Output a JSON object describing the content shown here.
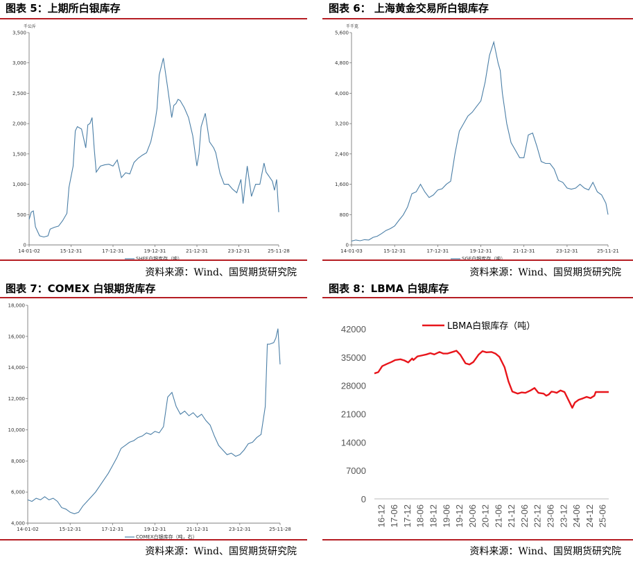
{
  "panels": {
    "p5": {
      "title": "图表 5：上期所白银库存",
      "source": "资料来源：Wind、国贸期货研究院"
    },
    "p6": {
      "title": "图表 6：  上海黄金交易所白银库存",
      "source": "资料来源：Wind、国贸期货研究院"
    },
    "p7": {
      "title": "图表 7：COMEX 白银期货库存",
      "source": "资料来源：Wind、国贸期货研究院"
    },
    "p8": {
      "title": "图表 8：LBMA 白银库存",
      "source": "资料来源：Wind、国贸期货研究院"
    }
  },
  "colors": {
    "rule": "#b51c22",
    "series_blue": "#4a7ea6",
    "series_red": "#e8151b"
  },
  "chart_data": [
    {
      "id": "c5",
      "type": "line",
      "unit": "千公斤",
      "ylim": [
        0,
        3500
      ],
      "yticks": [
        "0",
        "500",
        "1,000",
        "1,500",
        "2,000",
        "2,500",
        "3,000",
        "3,500"
      ],
      "xlim": [
        0,
        11.9
      ],
      "xticks": [
        "14-01-02",
        "15-12-31",
        "17-12-31",
        "19-12-31",
        "21-12-31",
        "23-12-31",
        "25-11-28"
      ],
      "xtick_pos": [
        0,
        2,
        4,
        6,
        8,
        10,
        11.9
      ],
      "series": [
        {
          "name": "SHFE白银库存（吨）",
          "x": [
            0,
            0.1,
            0.2,
            0.3,
            0.5,
            0.7,
            0.9,
            1.0,
            1.2,
            1.4,
            1.6,
            1.8,
            1.9,
            2.1,
            2.2,
            2.3,
            2.5,
            2.7,
            2.8,
            2.9,
            3.0,
            3.1,
            3.2,
            3.4,
            3.6,
            3.8,
            4.0,
            4.2,
            4.4,
            4.6,
            4.8,
            5.0,
            5.2,
            5.4,
            5.6,
            5.8,
            6.0,
            6.1,
            6.2,
            6.4,
            6.6,
            6.8,
            6.9,
            7.0,
            7.1,
            7.2,
            7.4,
            7.6,
            7.8,
            8.0,
            8.1,
            8.2,
            8.4,
            8.6,
            8.8,
            8.9,
            9.1,
            9.3,
            9.5,
            9.7,
            9.9,
            10.1,
            10.2,
            10.4,
            10.6,
            10.8,
            11.0,
            11.2,
            11.3,
            11.4,
            11.6,
            11.7,
            11.8,
            11.9
          ],
          "values": [
            420,
            540,
            560,
            300,
            150,
            130,
            150,
            260,
            290,
            310,
            400,
            520,
            950,
            1300,
            1880,
            1950,
            1910,
            1600,
            1980,
            2000,
            2100,
            1600,
            1200,
            1300,
            1320,
            1330,
            1300,
            1400,
            1110,
            1190,
            1170,
            1360,
            1430,
            1480,
            1520,
            1700,
            2020,
            2250,
            2800,
            3080,
            2600,
            2100,
            2300,
            2330,
            2400,
            2380,
            2260,
            2100,
            1800,
            1300,
            1500,
            1950,
            2170,
            1700,
            1600,
            1520,
            1180,
            1000,
            1000,
            920,
            860,
            1080,
            680,
            1300,
            800,
            1000,
            1000,
            1350,
            1200,
            1150,
            1050,
            900,
            1080,
            540
          ]
        }
      ]
    },
    {
      "id": "c6",
      "type": "line",
      "unit": "千千克",
      "ylim": [
        0,
        5600
      ],
      "yticks": [
        "0",
        "800",
        "1,600",
        "2,400",
        "3,200",
        "4,000",
        "4,800",
        "5,600"
      ],
      "xlim": [
        0,
        11.9
      ],
      "xticks": [
        "14-01-03",
        "15-12-31",
        "17-12-31",
        "19-12-31",
        "21-12-31",
        "23-12-31",
        "25-11-21"
      ],
      "xtick_pos": [
        0,
        2,
        4,
        6,
        8,
        10,
        11.9
      ],
      "series": [
        {
          "name": "SGE白银库存（吨）",
          "x": [
            0,
            0.2,
            0.4,
            0.6,
            0.8,
            1.0,
            1.2,
            1.4,
            1.6,
            1.8,
            2.0,
            2.2,
            2.4,
            2.6,
            2.8,
            3.0,
            3.2,
            3.4,
            3.6,
            3.8,
            4.0,
            4.2,
            4.4,
            4.6,
            4.8,
            5.0,
            5.2,
            5.4,
            5.6,
            5.8,
            6.0,
            6.2,
            6.4,
            6.6,
            6.8,
            6.9,
            7.0,
            7.2,
            7.4,
            7.6,
            7.8,
            8.0,
            8.2,
            8.4,
            8.6,
            8.8,
            9.0,
            9.2,
            9.4,
            9.6,
            9.8,
            10.0,
            10.2,
            10.4,
            10.6,
            10.8,
            11.0,
            11.2,
            11.4,
            11.6,
            11.8,
            11.9
          ],
          "values": [
            100,
            130,
            110,
            140,
            130,
            200,
            230,
            300,
            380,
            430,
            500,
            650,
            790,
            1000,
            1350,
            1400,
            1600,
            1400,
            1250,
            1320,
            1450,
            1480,
            1600,
            1680,
            2400,
            3000,
            3200,
            3400,
            3500,
            3650,
            3800,
            4300,
            5000,
            5350,
            4800,
            4600,
            4000,
            3200,
            2700,
            2500,
            2300,
            2300,
            2900,
            2950,
            2600,
            2200,
            2150,
            2150,
            2000,
            1700,
            1650,
            1500,
            1470,
            1500,
            1600,
            1500,
            1450,
            1650,
            1400,
            1320,
            1100,
            800
          ]
        }
      ]
    },
    {
      "id": "c7",
      "type": "line",
      "unit": "",
      "ylim": [
        4000,
        18000
      ],
      "yticks": [
        "4,000",
        "6,000",
        "8,000",
        "10,000",
        "12,000",
        "14,000",
        "16,000",
        "18,000"
      ],
      "xlim": [
        0,
        11.9
      ],
      "xticks": [
        "14-01-02",
        "15-12-31",
        "17-12-31",
        "19-12-31",
        "21-12-31",
        "23-12-31",
        "25-11-28"
      ],
      "xtick_pos": [
        0,
        2,
        4,
        6,
        8,
        10,
        11.9
      ],
      "series": [
        {
          "name": "COMEX白银库存（吨，右）",
          "x": [
            0,
            0.2,
            0.4,
            0.6,
            0.8,
            1.0,
            1.2,
            1.4,
            1.6,
            1.8,
            2.0,
            2.2,
            2.4,
            2.6,
            2.8,
            3.0,
            3.2,
            3.4,
            3.6,
            3.8,
            4.0,
            4.2,
            4.4,
            4.6,
            4.8,
            5.0,
            5.2,
            5.4,
            5.6,
            5.8,
            6.0,
            6.2,
            6.4,
            6.6,
            6.8,
            7.0,
            7.2,
            7.4,
            7.6,
            7.8,
            8.0,
            8.2,
            8.4,
            8.6,
            8.8,
            9.0,
            9.2,
            9.4,
            9.6,
            9.8,
            10.0,
            10.2,
            10.4,
            10.6,
            10.8,
            11.0,
            11.2,
            11.3,
            11.4,
            11.6,
            11.7,
            11.8,
            11.9
          ],
          "values": [
            5500,
            5400,
            5600,
            5500,
            5700,
            5500,
            5600,
            5400,
            5000,
            4900,
            4700,
            4600,
            4700,
            5100,
            5400,
            5700,
            6000,
            6400,
            6800,
            7200,
            7700,
            8200,
            8800,
            9000,
            9200,
            9300,
            9500,
            9600,
            9800,
            9700,
            9900,
            9800,
            10200,
            12100,
            12400,
            11500,
            11000,
            11200,
            10900,
            11100,
            10800,
            11000,
            10600,
            10300,
            9600,
            9000,
            8700,
            8400,
            8500,
            8300,
            8400,
            8700,
            9100,
            9200,
            9500,
            9700,
            11500,
            15500,
            15500,
            15600,
            15900,
            16500,
            14200
          ]
        }
      ]
    },
    {
      "id": "c8",
      "type": "line",
      "unit": "",
      "ylim": [
        0,
        42000
      ],
      "yticks": [
        "0",
        "7000",
        "14000",
        "21000",
        "28000",
        "35000",
        "42000"
      ],
      "xticks": [
        "16-12",
        "17-06",
        "17-12",
        "18-06",
        "18-12",
        "19-06",
        "19-12",
        "20-06",
        "20-12",
        "21-06",
        "21-12",
        "22-06",
        "22-12",
        "23-06",
        "23-12",
        "24-06",
        "24-12",
        "25-06"
      ],
      "xlim": [
        0,
        18
      ],
      "series": [
        {
          "name": "LBMA白银库存（吨）",
          "x": [
            0,
            0.3,
            0.6,
            1.0,
            1.3,
            1.6,
            2.0,
            2.3,
            2.6,
            2.9,
            3.0,
            3.3,
            3.6,
            4.0,
            4.3,
            4.6,
            5.0,
            5.3,
            5.6,
            6.0,
            6.3,
            6.6,
            7.0,
            7.3,
            7.6,
            8.0,
            8.3,
            8.6,
            9.0,
            9.3,
            9.6,
            10.0,
            10.3,
            10.6,
            11.0,
            11.3,
            11.6,
            12.0,
            12.3,
            12.6,
            13.0,
            13.2,
            13.4,
            13.6,
            13.8,
            14.0,
            14.3,
            14.6,
            15.0,
            15.2,
            15.4,
            15.7,
            16.0,
            16.3,
            16.6,
            16.9,
            17.0,
            17.2,
            17.4,
            17.6,
            17.8,
            18.0
          ],
          "values": [
            31000,
            31300,
            32800,
            33400,
            33800,
            34300,
            34500,
            34200,
            33700,
            34700,
            34300,
            35200,
            35400,
            35700,
            36000,
            35700,
            36300,
            35900,
            35900,
            36300,
            36600,
            35600,
            33500,
            33200,
            33800,
            35600,
            36500,
            36200,
            36300,
            35900,
            35100,
            32500,
            29000,
            26500,
            26000,
            26300,
            26200,
            26800,
            27400,
            26200,
            26000,
            25500,
            25800,
            26500,
            26400,
            26200,
            26800,
            26400,
            23800,
            22500,
            23800,
            24500,
            24800,
            25200,
            24900,
            25500,
            26400,
            26400,
            26400,
            26400,
            26400,
            26400
          ]
        }
      ]
    }
  ]
}
